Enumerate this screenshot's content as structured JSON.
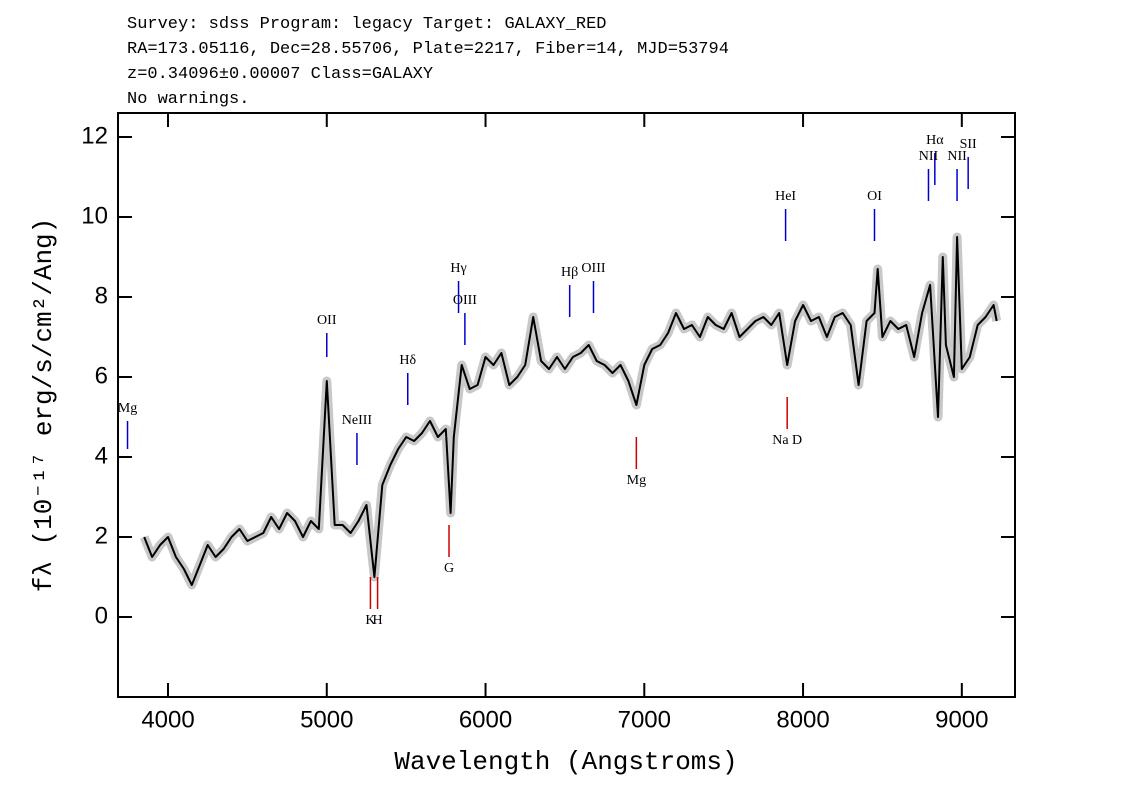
{
  "chart_data": {
    "type": "line",
    "header_lines": [
      "Survey: sdss Program: legacy Target: GALAXY_RED",
      "RA=173.05116, Dec=28.55706, Plate=2217, Fiber=14, MJD=53794",
      "z=0.34096±0.00007 Class=GALAXY",
      "No warnings."
    ],
    "x_label": "Wavelength (Angstroms)",
    "y_label": "fλ (10⁻¹⁷ erg/s/cm²/Ang)",
    "x": [
      3850,
      3900,
      3950,
      4000,
      4050,
      4100,
      4150,
      4200,
      4250,
      4300,
      4350,
      4400,
      4450,
      4500,
      4550,
      4600,
      4650,
      4700,
      4750,
      4800,
      4850,
      4900,
      4950,
      5000,
      5050,
      5100,
      5150,
      5200,
      5250,
      5300,
      5350,
      5400,
      5450,
      5500,
      5550,
      5600,
      5650,
      5700,
      5750,
      5780,
      5800,
      5850,
      5900,
      5950,
      6000,
      6050,
      6100,
      6150,
      6200,
      6250,
      6300,
      6350,
      6400,
      6450,
      6500,
      6550,
      6600,
      6650,
      6700,
      6750,
      6800,
      6850,
      6900,
      6950,
      7000,
      7050,
      7100,
      7150,
      7200,
      7250,
      7300,
      7350,
      7400,
      7450,
      7500,
      7550,
      7600,
      7650,
      7700,
      7750,
      7800,
      7850,
      7900,
      7950,
      8000,
      8050,
      8100,
      8150,
      8200,
      8250,
      8300,
      8350,
      8400,
      8450,
      8470,
      8500,
      8550,
      8600,
      8650,
      8700,
      8750,
      8800,
      8850,
      8880,
      8900,
      8950,
      8970,
      9000,
      9050,
      9100,
      9150,
      9200,
      9220
    ],
    "values": [
      2.0,
      1.5,
      1.8,
      2.0,
      1.5,
      1.2,
      0.8,
      1.3,
      1.8,
      1.5,
      1.7,
      2.0,
      2.2,
      1.9,
      2.0,
      2.1,
      2.5,
      2.2,
      2.6,
      2.4,
      2.0,
      2.4,
      2.2,
      5.9,
      2.3,
      2.3,
      2.1,
      2.4,
      2.8,
      1.0,
      3.3,
      3.8,
      4.2,
      4.5,
      4.4,
      4.6,
      4.9,
      4.5,
      4.7,
      2.6,
      4.5,
      6.3,
      5.7,
      5.8,
      6.5,
      6.3,
      6.6,
      5.8,
      6.0,
      6.3,
      7.5,
      6.4,
      6.2,
      6.5,
      6.2,
      6.5,
      6.6,
      6.8,
      6.4,
      6.3,
      6.1,
      6.3,
      5.9,
      5.3,
      6.3,
      6.7,
      6.8,
      7.1,
      7.6,
      7.2,
      7.3,
      7.0,
      7.5,
      7.3,
      7.2,
      7.6,
      7.0,
      7.2,
      7.4,
      7.5,
      7.3,
      7.6,
      6.3,
      7.4,
      7.8,
      7.4,
      7.5,
      7.0,
      7.5,
      7.6,
      7.3,
      5.8,
      7.4,
      7.6,
      8.7,
      7.0,
      7.4,
      7.2,
      7.3,
      6.5,
      7.6,
      8.3,
      5.0,
      9.0,
      6.8,
      6.0,
      9.5,
      6.2,
      6.5,
      7.3,
      7.5,
      7.8,
      7.4
    ],
    "color": "#000000",
    "band_color": "#c8c8c8",
    "xlim": [
      3685,
      9335
    ],
    "ylim": [
      -2.0,
      12.6
    ],
    "xticks": [
      4000,
      5000,
      6000,
      7000,
      8000,
      9000
    ],
    "yticks": [
      0,
      2,
      4,
      6,
      8,
      10,
      12
    ],
    "annotations": [
      {
        "text": "Mg",
        "x": 3745,
        "y": 4.2,
        "y2": 4.9,
        "color": "#0000cc",
        "position": "above"
      },
      {
        "text": "OII",
        "x": 5000,
        "y": 6.5,
        "y2": 7.1,
        "color": "#0000cc",
        "position": "above"
      },
      {
        "text": "NeIII",
        "x": 5190,
        "y": 3.8,
        "y2": 4.6,
        "color": "#0000cc",
        "position": "above"
      },
      {
        "text": "Hδ",
        "x": 5510,
        "y": 5.3,
        "y2": 6.1,
        "color": "#0000cc",
        "position": "above"
      },
      {
        "text": "Hγ",
        "x": 5830,
        "y": 7.6,
        "y2": 8.4,
        "color": "#0000cc",
        "position": "above"
      },
      {
        "text": "OIII",
        "x": 5870,
        "y": 6.8,
        "y2": 7.6,
        "color": "#0000cc",
        "position": "above"
      },
      {
        "text": "Hβ",
        "x": 6530,
        "y": 7.5,
        "y2": 8.3,
        "color": "#0000cc",
        "position": "above"
      },
      {
        "text": "OIII",
        "x": 6680,
        "y": 7.6,
        "y2": 8.4,
        "color": "#0000cc",
        "position": "above"
      },
      {
        "text": "HeI",
        "x": 7890,
        "y": 9.4,
        "y2": 10.2,
        "color": "#0000cc",
        "position": "above"
      },
      {
        "text": "OI",
        "x": 8450,
        "y": 9.4,
        "y2": 10.2,
        "color": "#0000cc",
        "position": "above"
      },
      {
        "text": "NII",
        "x": 8790,
        "y": 10.4,
        "y2": 11.2,
        "color": "#0000cc",
        "position": "above"
      },
      {
        "text": "Hα",
        "x": 8830,
        "y": 10.8,
        "y2": 11.6,
        "color": "#0000cc",
        "position": "above"
      },
      {
        "text": "NII",
        "x": 8970,
        "y": 10.4,
        "y2": 11.2,
        "color": "#0000cc",
        "position": "above"
      },
      {
        "text": "SII",
        "x": 9040,
        "y": 10.7,
        "y2": 11.5,
        "color": "#0000cc",
        "position": "above"
      },
      {
        "text": "K",
        "x": 5275,
        "y": 0.2,
        "y2": 1.0,
        "color": "#cc0000",
        "position": "below"
      },
      {
        "text": "H",
        "x": 5320,
        "y": 0.2,
        "y2": 1.0,
        "color": "#cc0000",
        "position": "below"
      },
      {
        "text": "G",
        "x": 5770,
        "y": 1.5,
        "y2": 2.3,
        "color": "#cc0000",
        "position": "below"
      },
      {
        "text": "Mg",
        "x": 6950,
        "y": 3.7,
        "y2": 4.5,
        "color": "#cc0000",
        "position": "below"
      },
      {
        "text": "Na D",
        "x": 7900,
        "y": 4.7,
        "y2": 5.5,
        "color": "#cc0000",
        "position": "below"
      }
    ]
  }
}
